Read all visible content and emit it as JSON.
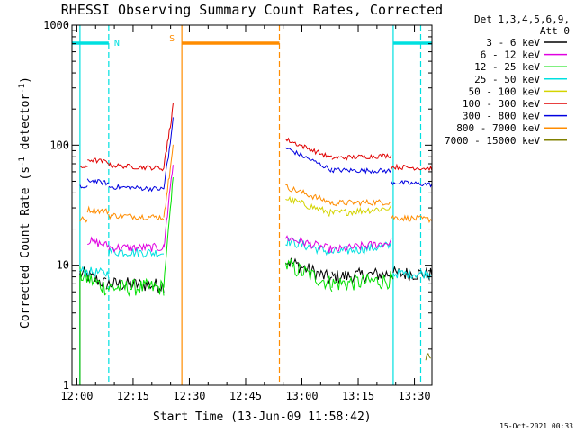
{
  "chart_data": {
    "type": "line",
    "title": "RHESSI Observing Summary Count Rates, Corrected",
    "ylabel_main": "Corrected Count Rate (s",
    "ylabel_sup1": "-1",
    "ylabel_mid": " detector",
    "ylabel_sup2": "-1",
    "ylabel_end": ")",
    "xlabel": "Start Time (13-Jun-09 11:58:42)",
    "timestamp": "15-Oct-2021 00:33",
    "y_scale": "log",
    "ylim": [
      1,
      1000
    ],
    "xlim": [
      "11:58:42",
      "13:34:40"
    ],
    "y_tick_labels": [
      "1",
      "10",
      "100",
      "1000"
    ],
    "y_tick_values": [
      1,
      10,
      100,
      1000
    ],
    "x_tick_labels": [
      "12:00",
      "12:15",
      "12:30",
      "12:45",
      "13:00",
      "13:15",
      "13:30"
    ],
    "x_tick_values_min": [
      720,
      735,
      750,
      765,
      780,
      795,
      810
    ],
    "legend": {
      "placement": "right",
      "header_line1": "Det 1,3,4,5,6,9,",
      "header_line2": "Att 0",
      "entries": [
        {
          "label": "3 - 6 keV",
          "color": "#000000"
        },
        {
          "label": "6 - 12 keV",
          "color": "#e000e0"
        },
        {
          "label": "12 - 25 keV",
          "color": "#00e000"
        },
        {
          "label": "25 - 50 keV",
          "color": "#00e0e0"
        },
        {
          "label": "50 - 100 keV",
          "color": "#d4d400"
        },
        {
          "label": "100 - 300 keV",
          "color": "#e00000"
        },
        {
          "label": "300 - 800 keV",
          "color": "#0000e0"
        },
        {
          "label": "800 - 7000 keV",
          "color": "#ff8c00"
        },
        {
          "label": "7000 - 15000 keV",
          "color": "#808000"
        }
      ]
    },
    "annotations": {
      "night": {
        "label": "N",
        "color": "#00e0e0",
        "bars": [
          [
            "11:58:42",
            "12:08:30"
          ],
          [
            "13:24:20",
            "13:34:40"
          ]
        ],
        "solid_lines": [
          "12:00:50",
          "13:24:20"
        ],
        "dashed_lines": [
          "12:08:30",
          "13:31:40"
        ]
      },
      "saa": {
        "label": "S",
        "color": "#ff8c00",
        "bars": [
          [
            "12:28:00",
            "12:54:00"
          ]
        ],
        "solid_lines": [
          "12:28:00"
        ],
        "dashed_lines": [
          "12:54:00"
        ]
      }
    },
    "series": [
      {
        "name": "3 - 6 keV",
        "color": "#000000",
        "level": [
          9.8,
          7.0,
          11.0,
          8.5,
          8.0
        ],
        "segments": [
          [
            "12:00:50",
            "12:07:50",
            8.6,
            7.0
          ],
          [
            "12:07:50",
            "12:23:10",
            7.0,
            6.8
          ],
          [
            "12:55:40",
            "13:08:00",
            11.0,
            7.6
          ],
          [
            "13:08:00",
            "13:24:20",
            8.0,
            8.5
          ],
          [
            "13:24:20",
            "13:34:40",
            8.5,
            8.5
          ]
        ]
      },
      {
        "name": "6 - 12 keV",
        "color": "#e000e0",
        "segments": [
          [
            "12:02:50",
            "12:08:30",
            16.0,
            14.5
          ],
          [
            "12:08:30",
            "12:23:10",
            14.0,
            14.0
          ],
          [
            "12:55:40",
            "13:08:00",
            17.0,
            13.5
          ],
          [
            "13:08:00",
            "13:23:50",
            13.3,
            15.5
          ]
        ]
      },
      {
        "name": "12 - 25 keV",
        "color": "#00e000",
        "segments": [
          [
            "12:00:50",
            "12:07:50",
            8.3,
            6.5
          ],
          [
            "12:07:50",
            "12:23:10",
            6.5,
            6.5
          ],
          [
            "12:55:40",
            "13:08:00",
            10.0,
            7.0
          ],
          [
            "13:08:00",
            "13:24:20",
            7.0,
            7.5
          ]
        ]
      },
      {
        "name": "25 - 50 keV",
        "color": "#00e0e0",
        "segments": [
          [
            "12:00:50",
            "12:08:30",
            9.0,
            8.5
          ],
          [
            "12:08:30",
            "12:23:10",
            13.0,
            12.6
          ],
          [
            "12:55:40",
            "13:08:00",
            16.0,
            12.8
          ],
          [
            "13:08:00",
            "13:23:50",
            12.8,
            14.5
          ],
          [
            "13:24:20",
            "13:34:40",
            8.5,
            8.5
          ]
        ]
      },
      {
        "name": "50 - 100 keV",
        "color": "#d4d400",
        "segments": [
          [
            "12:55:40",
            "13:08:00",
            36.0,
            27.0
          ],
          [
            "13:08:00",
            "13:23:50",
            27.0,
            30.0
          ]
        ]
      },
      {
        "name": "100 - 300 keV",
        "color": "#e00000",
        "segments": [
          [
            "12:00:50",
            "12:02:50",
            67.0,
            64.0
          ],
          [
            "12:02:50",
            "12:08:30",
            76.0,
            72.0
          ],
          [
            "12:08:30",
            "12:23:10",
            68.0,
            64.0
          ],
          [
            "12:55:40",
            "13:08:00",
            112.0,
            78.0
          ],
          [
            "13:08:00",
            "13:23:50",
            78.0,
            82.0
          ],
          [
            "13:23:50",
            "13:34:40",
            66.0,
            64.0
          ]
        ]
      },
      {
        "name": "300 - 800 keV",
        "color": "#0000e0",
        "segments": [
          [
            "12:00:50",
            "12:02:50",
            45.0,
            44.0
          ],
          [
            "12:02:50",
            "12:08:30",
            51.0,
            48.0
          ],
          [
            "12:08:30",
            "12:23:10",
            45.0,
            43.0
          ],
          [
            "12:55:40",
            "13:08:00",
            95.0,
            62.0
          ],
          [
            "13:08:00",
            "13:23:50",
            62.0,
            61.0
          ],
          [
            "13:23:50",
            "13:34:40",
            49.0,
            47.0
          ]
        ]
      },
      {
        "name": "800 - 7000 keV",
        "color": "#ff8c00",
        "segments": [
          [
            "12:00:50",
            "12:02:50",
            24.0,
            24.0
          ],
          [
            "12:02:50",
            "12:08:30",
            29.0,
            28.0
          ],
          [
            "12:08:30",
            "12:23:10",
            26.0,
            25.0
          ],
          [
            "12:55:40",
            "13:08:00",
            45.0,
            33.0
          ],
          [
            "13:08:00",
            "13:23:50",
            33.0,
            33.5
          ],
          [
            "13:23:50",
            "13:34:40",
            25.0,
            24.0
          ]
        ]
      },
      {
        "name": "7000 - 15000 keV",
        "color": "#808000",
        "segments": [
          [
            "13:33:00",
            "13:34:20",
            1.6,
            1.8
          ]
        ]
      }
    ],
    "rise": {
      "start": "12:23:10",
      "end": "12:25:40",
      "peaks": {
        "100 - 300 keV": 210,
        "300 - 800 keV": 160,
        "800 - 7000 keV": 95,
        "6 - 12 keV": 70,
        "12 - 25 keV": 55,
        "50 - 100 keV": 60
      }
    }
  }
}
